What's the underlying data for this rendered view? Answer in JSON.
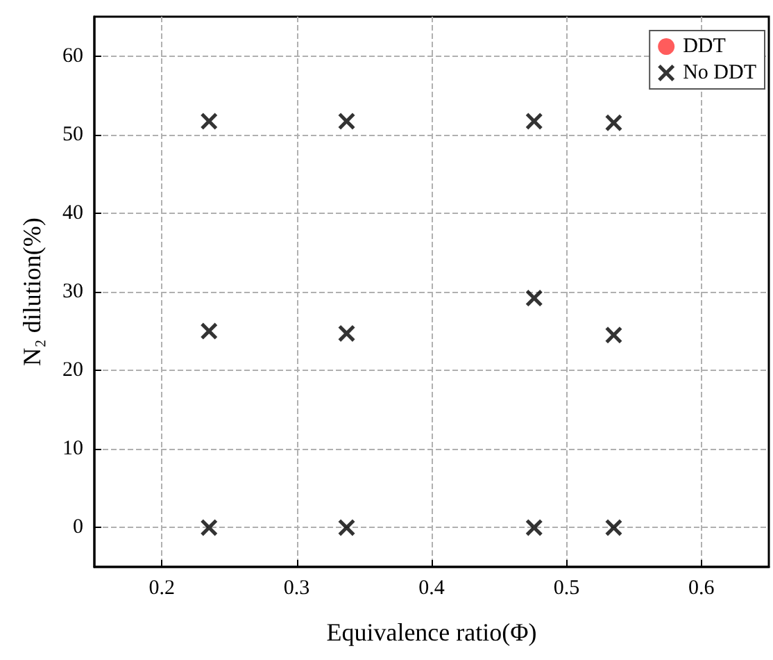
{
  "chart_data": {
    "type": "scatter",
    "xlabel": "Equivalence ratio(Φ)",
    "ylabel": "N₂ dilution(%)",
    "series": [
      {
        "name": "DDT",
        "color": "#ff3333",
        "marker": "circle"
      },
      {
        "name": "No DDT",
        "color": "#000000",
        "marker": "cross",
        "x": [
          0.235,
          0.337,
          0.476,
          0.535,
          0.235,
          0.337,
          0.476,
          0.535,
          0.235,
          0.337,
          0.476,
          0.535
        ],
        "values": [
          51.7,
          51.7,
          51.7,
          51.5,
          25,
          24.7,
          29.2,
          24.5,
          0,
          0,
          0,
          0
        ]
      }
    ],
    "xlim": [
      0.15,
      0.65
    ],
    "xticks": [
      0.2,
      0.3,
      0.4,
      0.5,
      0.6
    ],
    "ylim": [
      -5,
      65
    ],
    "yticks": [
      0,
      10,
      20,
      30,
      40,
      50,
      60
    ],
    "grid": true,
    "legend": "top right"
  }
}
